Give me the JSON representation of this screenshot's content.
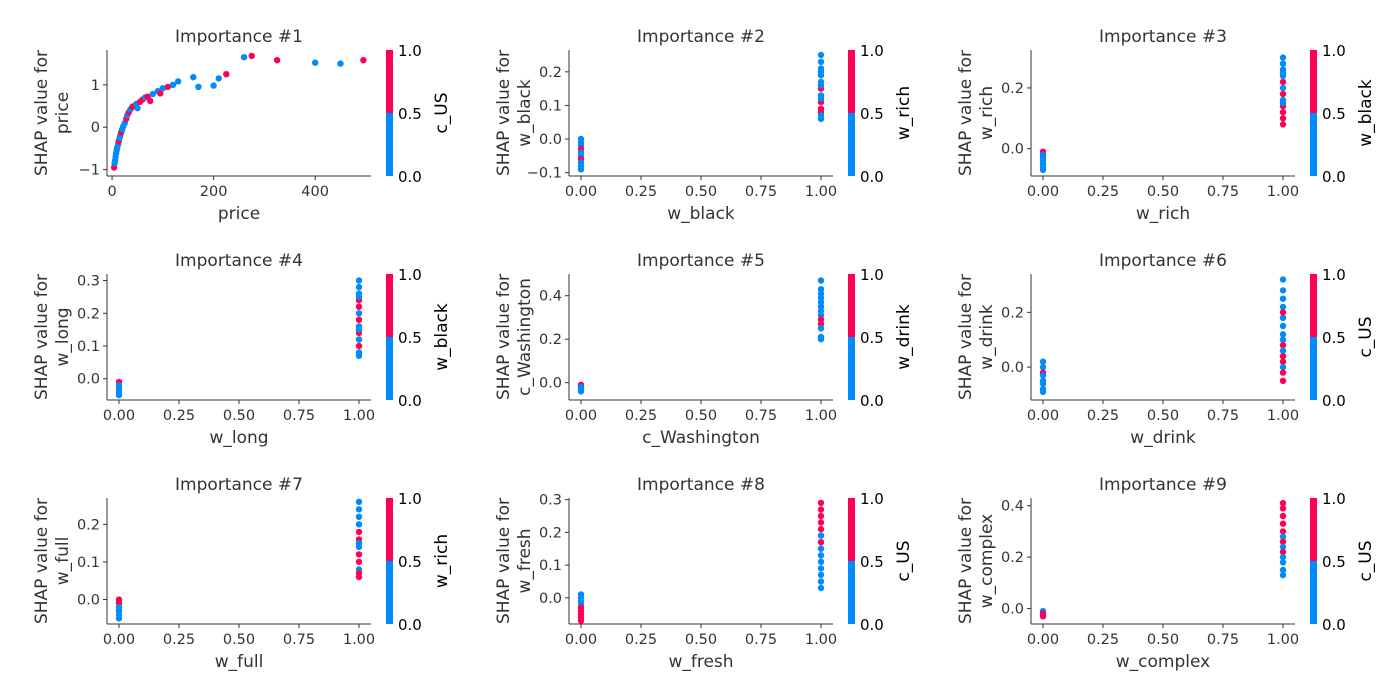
{
  "colors": {
    "low": "#008bfb",
    "high": "#ff0052"
  },
  "chart_data": [
    {
      "type": "scatter",
      "title": "Importance #1",
      "xlabel": "price",
      "ylabel": [
        "SHAP value for",
        "price"
      ],
      "xlim": [
        -10,
        510
      ],
      "ylim": [
        -1.15,
        1.82
      ],
      "xticks": [
        0,
        200,
        400
      ],
      "xticklabels": [
        "0",
        "200",
        "400"
      ],
      "yticks": [
        -1,
        0,
        1
      ],
      "yticklabels": [
        "−1",
        "0",
        "1"
      ],
      "color_feature": "c_US",
      "colorbar_ticks": [
        "0.0",
        "0.5",
        "1.0"
      ],
      "points": [
        [
          4,
          -0.95,
          1
        ],
        [
          5,
          -0.85,
          0
        ],
        [
          6,
          -0.78,
          0
        ],
        [
          7,
          -0.7,
          0
        ],
        [
          8,
          -0.62,
          0
        ],
        [
          9,
          -0.55,
          0
        ],
        [
          10,
          -0.48,
          0
        ],
        [
          12,
          -0.4,
          0
        ],
        [
          13,
          -0.33,
          1
        ],
        [
          15,
          -0.25,
          0
        ],
        [
          16,
          -0.2,
          0
        ],
        [
          18,
          -0.12,
          1
        ],
        [
          20,
          -0.05,
          0
        ],
        [
          22,
          0.02,
          0
        ],
        [
          25,
          0.1,
          0
        ],
        [
          28,
          0.2,
          1
        ],
        [
          30,
          0.28,
          0
        ],
        [
          33,
          0.35,
          1
        ],
        [
          36,
          0.42,
          0
        ],
        [
          40,
          0.48,
          1
        ],
        [
          44,
          0.5,
          1
        ],
        [
          48,
          0.55,
          0
        ],
        [
          50,
          0.45,
          0
        ],
        [
          55,
          0.6,
          1
        ],
        [
          60,
          0.65,
          1
        ],
        [
          65,
          0.7,
          0
        ],
        [
          70,
          0.72,
          1
        ],
        [
          75,
          0.62,
          1
        ],
        [
          80,
          0.78,
          0
        ],
        [
          90,
          0.85,
          0
        ],
        [
          95,
          0.8,
          1
        ],
        [
          100,
          0.92,
          0
        ],
        [
          110,
          0.95,
          1
        ],
        [
          120,
          1.0,
          0
        ],
        [
          130,
          1.08,
          0
        ],
        [
          160,
          1.18,
          0
        ],
        [
          170,
          0.95,
          0
        ],
        [
          200,
          0.98,
          0
        ],
        [
          210,
          1.15,
          0
        ],
        [
          225,
          1.25,
          1
        ],
        [
          260,
          1.65,
          0
        ],
        [
          275,
          1.68,
          1
        ],
        [
          325,
          1.58,
          1
        ],
        [
          400,
          1.52,
          0
        ],
        [
          450,
          1.5,
          0
        ],
        [
          495,
          1.58,
          1
        ]
      ]
    },
    {
      "type": "scatter",
      "title": "Importance #2",
      "xlabel": "w_black",
      "ylabel": [
        "SHAP value for",
        "w_black"
      ],
      "xlim": [
        -0.05,
        1.05
      ],
      "ylim": [
        -0.11,
        0.265
      ],
      "xticks": [
        0,
        0.25,
        0.5,
        0.75,
        1
      ],
      "xticklabels": [
        "0.00",
        "0.25",
        "0.50",
        "0.75",
        "1.00"
      ],
      "yticks": [
        -0.1,
        0,
        0.1,
        0.2
      ],
      "yticklabels": [
        "−0.1",
        "0.0",
        "0.1",
        "0.2"
      ],
      "color_feature": "w_rich",
      "colorbar_ticks": [
        "0.0",
        "0.5",
        "1.0"
      ],
      "points": [
        [
          0,
          0.0,
          0
        ],
        [
          0,
          -0.01,
          0
        ],
        [
          0,
          -0.02,
          0
        ],
        [
          0,
          -0.03,
          1
        ],
        [
          0,
          -0.04,
          0
        ],
        [
          0,
          -0.05,
          0
        ],
        [
          0,
          -0.06,
          1
        ],
        [
          0,
          -0.07,
          0
        ],
        [
          0,
          -0.08,
          0
        ],
        [
          0,
          -0.09,
          0
        ],
        [
          1,
          0.25,
          0
        ],
        [
          1,
          0.23,
          0
        ],
        [
          1,
          0.21,
          0
        ],
        [
          1,
          0.19,
          0
        ],
        [
          1,
          0.17,
          0
        ],
        [
          1,
          0.15,
          1
        ],
        [
          1,
          0.13,
          0
        ],
        [
          1,
          0.11,
          1
        ],
        [
          1,
          0.09,
          1
        ],
        [
          1,
          0.08,
          1
        ],
        [
          1,
          0.07,
          0
        ],
        [
          1,
          0.06,
          0
        ],
        [
          1,
          0.16,
          0
        ],
        [
          1,
          0.12,
          0
        ],
        [
          1,
          0.2,
          0
        ]
      ]
    },
    {
      "type": "scatter",
      "title": "Importance #3",
      "xlabel": "w_rich",
      "ylabel": [
        "SHAP value for",
        "w_rich"
      ],
      "xlim": [
        -0.05,
        1.05
      ],
      "ylim": [
        -0.09,
        0.325
      ],
      "xticks": [
        0,
        0.25,
        0.5,
        0.75,
        1
      ],
      "xticklabels": [
        "0.00",
        "0.25",
        "0.50",
        "0.75",
        "1.00"
      ],
      "yticks": [
        0,
        0.2
      ],
      "yticklabels": [
        "0.0",
        "0.2"
      ],
      "color_feature": "w_black",
      "colorbar_ticks": [
        "0.0",
        "0.5",
        "1.0"
      ],
      "points": [
        [
          0,
          -0.01,
          1
        ],
        [
          0,
          -0.02,
          0
        ],
        [
          0,
          -0.03,
          0
        ],
        [
          0,
          -0.04,
          0
        ],
        [
          0,
          -0.05,
          0
        ],
        [
          0,
          -0.06,
          0
        ],
        [
          0,
          -0.07,
          0
        ],
        [
          1,
          0.3,
          0
        ],
        [
          1,
          0.28,
          0
        ],
        [
          1,
          0.26,
          0
        ],
        [
          1,
          0.24,
          0
        ],
        [
          1,
          0.22,
          1
        ],
        [
          1,
          0.2,
          0
        ],
        [
          1,
          0.18,
          1
        ],
        [
          1,
          0.16,
          0
        ],
        [
          1,
          0.14,
          1
        ],
        [
          1,
          0.12,
          1
        ],
        [
          1,
          0.1,
          1
        ],
        [
          1,
          0.08,
          1
        ],
        [
          1,
          0.15,
          0
        ],
        [
          1,
          0.25,
          0
        ]
      ]
    },
    {
      "type": "scatter",
      "title": "Importance #4",
      "xlabel": "w_long",
      "ylabel": [
        "SHAP value for",
        "w_long"
      ],
      "xlim": [
        -0.05,
        1.05
      ],
      "ylim": [
        -0.065,
        0.32
      ],
      "xticks": [
        0,
        0.25,
        0.5,
        0.75,
        1
      ],
      "xticklabels": [
        "0.00",
        "0.25",
        "0.50",
        "0.75",
        "1.00"
      ],
      "yticks": [
        0,
        0.1,
        0.2,
        0.3
      ],
      "yticklabels": [
        "0.0",
        "0.1",
        "0.2",
        "0.3"
      ],
      "color_feature": "w_black",
      "colorbar_ticks": [
        "0.0",
        "0.5",
        "1.0"
      ],
      "points": [
        [
          0,
          -0.01,
          1
        ],
        [
          0,
          -0.02,
          0
        ],
        [
          0,
          -0.03,
          0
        ],
        [
          0,
          -0.04,
          0
        ],
        [
          0,
          -0.05,
          0
        ],
        [
          1,
          0.3,
          0
        ],
        [
          1,
          0.28,
          0
        ],
        [
          1,
          0.26,
          0
        ],
        [
          1,
          0.24,
          1
        ],
        [
          1,
          0.22,
          1
        ],
        [
          1,
          0.2,
          0
        ],
        [
          1,
          0.18,
          1
        ],
        [
          1,
          0.16,
          0
        ],
        [
          1,
          0.14,
          1
        ],
        [
          1,
          0.12,
          0
        ],
        [
          1,
          0.1,
          1
        ],
        [
          1,
          0.08,
          0
        ],
        [
          1,
          0.07,
          0
        ],
        [
          1,
          0.25,
          0
        ],
        [
          1,
          0.15,
          0
        ]
      ]
    },
    {
      "type": "scatter",
      "title": "Importance #5",
      "xlabel": "c_Washington",
      "ylabel": [
        "SHAP value for",
        "c_Washington"
      ],
      "xlim": [
        -0.05,
        1.05
      ],
      "ylim": [
        -0.08,
        0.5
      ],
      "xticks": [
        0,
        0.25,
        0.5,
        0.75,
        1
      ],
      "xticklabels": [
        "0.00",
        "0.25",
        "0.50",
        "0.75",
        "1.00"
      ],
      "yticks": [
        0,
        0.2,
        0.4
      ],
      "yticklabels": [
        "0.0",
        "0.2",
        "0.4"
      ],
      "color_feature": "w_drink",
      "colorbar_ticks": [
        "0.0",
        "0.5",
        "1.0"
      ],
      "points": [
        [
          0,
          -0.01,
          1
        ],
        [
          0,
          -0.02,
          0
        ],
        [
          0,
          -0.03,
          0
        ],
        [
          0,
          -0.04,
          0
        ],
        [
          1,
          0.47,
          0
        ],
        [
          1,
          0.43,
          0
        ],
        [
          1,
          0.41,
          0
        ],
        [
          1,
          0.39,
          0
        ],
        [
          1,
          0.37,
          0
        ],
        [
          1,
          0.35,
          0
        ],
        [
          1,
          0.33,
          0
        ],
        [
          1,
          0.31,
          0
        ],
        [
          1,
          0.29,
          1
        ],
        [
          1,
          0.27,
          1
        ],
        [
          1,
          0.25,
          0
        ],
        [
          1,
          0.21,
          0
        ],
        [
          1,
          0.2,
          0
        ]
      ]
    },
    {
      "type": "scatter",
      "title": "Importance #6",
      "xlabel": "w_drink",
      "ylabel": [
        "SHAP value for",
        "w_drink"
      ],
      "xlim": [
        -0.05,
        1.05
      ],
      "ylim": [
        -0.12,
        0.34
      ],
      "xticks": [
        0,
        0.25,
        0.5,
        0.75,
        1
      ],
      "xticklabels": [
        "0.00",
        "0.25",
        "0.50",
        "0.75",
        "1.00"
      ],
      "yticks": [
        0,
        0.2
      ],
      "yticklabels": [
        "0.0",
        "0.2"
      ],
      "color_feature": "c_US",
      "colorbar_ticks": [
        "0.0",
        "0.5",
        "1.0"
      ],
      "points": [
        [
          0,
          0.02,
          0
        ],
        [
          0,
          0.0,
          0
        ],
        [
          0,
          -0.02,
          1
        ],
        [
          0,
          -0.03,
          0
        ],
        [
          0,
          -0.05,
          0
        ],
        [
          0,
          -0.06,
          0
        ],
        [
          0,
          -0.08,
          0
        ],
        [
          0,
          -0.09,
          0
        ],
        [
          1,
          0.32,
          0
        ],
        [
          1,
          0.28,
          0
        ],
        [
          1,
          0.25,
          0
        ],
        [
          1,
          0.22,
          0
        ],
        [
          1,
          0.18,
          0
        ],
        [
          1,
          0.15,
          0
        ],
        [
          1,
          0.12,
          0
        ],
        [
          1,
          0.1,
          0
        ],
        [
          1,
          0.08,
          1
        ],
        [
          1,
          0.06,
          0
        ],
        [
          1,
          0.04,
          1
        ],
        [
          1,
          0.02,
          1
        ],
        [
          1,
          0.0,
          0
        ],
        [
          1,
          -0.02,
          1
        ],
        [
          1,
          -0.05,
          1
        ],
        [
          1,
          0.2,
          1
        ]
      ]
    },
    {
      "type": "scatter",
      "title": "Importance #7",
      "xlabel": "w_full",
      "ylabel": [
        "SHAP value for",
        "w_full"
      ],
      "xlim": [
        -0.05,
        1.05
      ],
      "ylim": [
        -0.065,
        0.27
      ],
      "xticks": [
        0,
        0.25,
        0.5,
        0.75,
        1
      ],
      "xticklabels": [
        "0.00",
        "0.25",
        "0.50",
        "0.75",
        "1.00"
      ],
      "yticks": [
        0,
        0.1,
        0.2
      ],
      "yticklabels": [
        "0.0",
        "0.1",
        "0.2"
      ],
      "color_feature": "w_rich",
      "colorbar_ticks": [
        "0.0",
        "0.5",
        "1.0"
      ],
      "points": [
        [
          0,
          0.0,
          1
        ],
        [
          0,
          -0.01,
          1
        ],
        [
          0,
          -0.02,
          0
        ],
        [
          0,
          -0.03,
          0
        ],
        [
          0,
          -0.04,
          0
        ],
        [
          0,
          -0.05,
          0
        ],
        [
          1,
          0.26,
          0
        ],
        [
          1,
          0.24,
          0
        ],
        [
          1,
          0.22,
          0
        ],
        [
          1,
          0.2,
          0
        ],
        [
          1,
          0.18,
          1
        ],
        [
          1,
          0.16,
          1
        ],
        [
          1,
          0.14,
          0
        ],
        [
          1,
          0.12,
          1
        ],
        [
          1,
          0.1,
          1
        ],
        [
          1,
          0.08,
          0
        ],
        [
          1,
          0.07,
          1
        ],
        [
          1,
          0.06,
          1
        ],
        [
          1,
          0.15,
          0
        ]
      ]
    },
    {
      "type": "scatter",
      "title": "Importance #8",
      "xlabel": "w_fresh",
      "ylabel": [
        "SHAP value for",
        "w_fresh"
      ],
      "xlim": [
        -0.05,
        1.05
      ],
      "ylim": [
        -0.08,
        0.305
      ],
      "xticks": [
        0,
        0.25,
        0.5,
        0.75,
        1
      ],
      "xticklabels": [
        "0.00",
        "0.25",
        "0.50",
        "0.75",
        "1.00"
      ],
      "yticks": [
        0,
        0.1,
        0.2,
        0.3
      ],
      "yticklabels": [
        "0.0",
        "0.1",
        "0.2",
        "0.3"
      ],
      "color_feature": "c_US",
      "colorbar_ticks": [
        "0.0",
        "0.5",
        "1.0"
      ],
      "points": [
        [
          0,
          0.01,
          0
        ],
        [
          0,
          0.0,
          0
        ],
        [
          0,
          -0.01,
          0
        ],
        [
          0,
          -0.02,
          0
        ],
        [
          0,
          -0.03,
          1
        ],
        [
          0,
          -0.04,
          1
        ],
        [
          0,
          -0.05,
          1
        ],
        [
          0,
          -0.06,
          1
        ],
        [
          0,
          -0.07,
          1
        ],
        [
          1,
          0.29,
          1
        ],
        [
          1,
          0.27,
          1
        ],
        [
          1,
          0.25,
          1
        ],
        [
          1,
          0.23,
          1
        ],
        [
          1,
          0.21,
          1
        ],
        [
          1,
          0.19,
          0
        ],
        [
          1,
          0.17,
          1
        ],
        [
          1,
          0.15,
          0
        ],
        [
          1,
          0.13,
          0
        ],
        [
          1,
          0.11,
          0
        ],
        [
          1,
          0.09,
          0
        ],
        [
          1,
          0.07,
          0
        ],
        [
          1,
          0.05,
          0
        ],
        [
          1,
          0.03,
          0
        ]
      ]
    },
    {
      "type": "scatter",
      "title": "Importance #9",
      "xlabel": "w_complex",
      "ylabel": [
        "SHAP value for",
        "w_complex"
      ],
      "xlim": [
        -0.05,
        1.05
      ],
      "ylim": [
        -0.06,
        0.43
      ],
      "xticks": [
        0,
        0.25,
        0.5,
        0.75,
        1
      ],
      "xticklabels": [
        "0.00",
        "0.25",
        "0.50",
        "0.75",
        "1.00"
      ],
      "yticks": [
        0,
        0.2,
        0.4
      ],
      "yticklabels": [
        "0.0",
        "0.2",
        "0.4"
      ],
      "color_feature": "c_US",
      "colorbar_ticks": [
        "0.0",
        "0.5",
        "1.0"
      ],
      "points": [
        [
          0,
          -0.01,
          0
        ],
        [
          0,
          -0.02,
          1
        ],
        [
          0,
          -0.03,
          1
        ],
        [
          1,
          0.41,
          1
        ],
        [
          1,
          0.39,
          1
        ],
        [
          1,
          0.36,
          1
        ],
        [
          1,
          0.33,
          1
        ],
        [
          1,
          0.3,
          1
        ],
        [
          1,
          0.28,
          0
        ],
        [
          1,
          0.26,
          1
        ],
        [
          1,
          0.24,
          0
        ],
        [
          1,
          0.22,
          1
        ],
        [
          1,
          0.2,
          0
        ],
        [
          1,
          0.18,
          0
        ],
        [
          1,
          0.15,
          0
        ],
        [
          1,
          0.13,
          0
        ]
      ]
    }
  ]
}
